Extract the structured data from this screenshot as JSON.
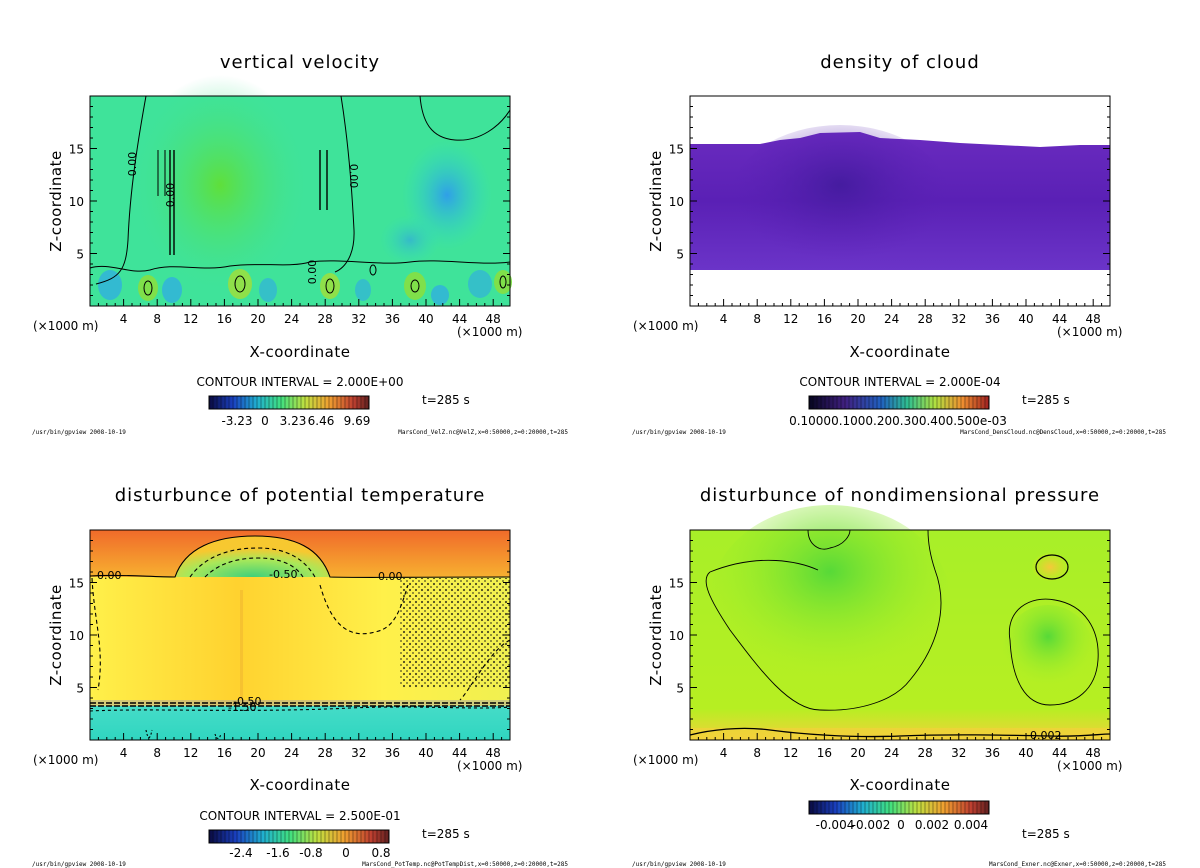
{
  "chart_data": [
    {
      "type": "heatmap",
      "title": "vertical velocity",
      "xlabel": "X-coordinate",
      "ylabel": "Z-coordinate",
      "x_unit": "(×1000 m)",
      "y_unit": "(×1000 m)",
      "xlim": [
        0,
        50
      ],
      "ylim": [
        0,
        20
      ],
      "x_ticks": [
        4,
        8,
        12,
        16,
        20,
        24,
        28,
        32,
        36,
        40,
        44,
        48
      ],
      "y_ticks": [
        5,
        10,
        15
      ],
      "contour_interval": "CONTOUR INTERVAL = 2.000E+00",
      "contour_labels": [
        "0.00",
        "0.00",
        "0.00",
        "0.00"
      ],
      "colorbar_ticks": [
        "-3.23",
        "0",
        "3.23",
        "6.46",
        "9.69"
      ],
      "time": "t=285 s",
      "footer_left": "/usr/bin/gpview  2008-10-19",
      "footer_right": "MarsCond_VelZ.nc@VelZ,x=0:50000,z=0:20000,t=285"
    },
    {
      "type": "heatmap",
      "title": "density of cloud",
      "xlabel": "X-coordinate",
      "ylabel": "Z-coordinate",
      "x_unit": "(×1000 m)",
      "y_unit": "(×1000 m)",
      "xlim": [
        0,
        50
      ],
      "ylim": [
        0,
        20
      ],
      "x_ticks": [
        4,
        8,
        12,
        16,
        20,
        24,
        28,
        32,
        36,
        40,
        44,
        48
      ],
      "y_ticks": [
        5,
        10,
        15
      ],
      "contour_interval": "CONTOUR INTERVAL = 2.000E-04",
      "colorbar_ticks": [
        "0.10000.1000.200.300.400.500e-03"
      ],
      "cloud_z_range": [
        3.5,
        15.5
      ],
      "time": "t=285 s",
      "footer_left": "/usr/bin/gpview  2008-10-19",
      "footer_right": "MarsCond_DensCloud.nc@DensCloud,x=0:50000,z=0:20000,t=285"
    },
    {
      "type": "heatmap",
      "title": "disturbunce of potential temperature",
      "xlabel": "X-coordinate",
      "ylabel": "Z-coordinate",
      "x_unit": "(×1000 m)",
      "y_unit": "(×1000 m)",
      "xlim": [
        0,
        50
      ],
      "ylim": [
        0,
        20
      ],
      "x_ticks": [
        4,
        8,
        12,
        16,
        20,
        24,
        28,
        32,
        36,
        40,
        44,
        48
      ],
      "y_ticks": [
        5,
        10,
        15
      ],
      "contour_interval": "CONTOUR INTERVAL = 2.500E-01",
      "contour_labels": [
        "0.00",
        "-0.50",
        "0.00",
        "-0.50",
        "-1.50"
      ],
      "colorbar_ticks": [
        "-2.4",
        "-1.6",
        "-0.8",
        "0",
        "0.8"
      ],
      "time": "t=285 s",
      "footer_left": "/usr/bin/gpview  2008-10-19",
      "footer_right": "MarsCond_PotTemp.nc@PotTempDist,x=0:50000,z=0:20000,t=285"
    },
    {
      "type": "heatmap",
      "title": "disturbunce of nondimensional pressure",
      "xlabel": "X-coordinate",
      "ylabel": "Z-coordinate",
      "x_unit": "(×1000 m)",
      "y_unit": "(×1000 m)",
      "xlim": [
        0,
        50
      ],
      "ylim": [
        0,
        20
      ],
      "x_ticks": [
        4,
        8,
        12,
        16,
        20,
        24,
        28,
        32,
        36,
        40,
        44,
        48
      ],
      "y_ticks": [
        5,
        10,
        15
      ],
      "contour_labels": [
        "0.002"
      ],
      "colorbar_ticks": [
        "-0.004",
        "-0.002",
        "0",
        "0.002",
        "0.004"
      ],
      "time": "t=285 s",
      "footer_left": "/usr/bin/gpview  2008-10-19",
      "footer_right": "MarsCond_Exner.nc@Exner,x=0:50000,z=0:20000,t=285"
    }
  ]
}
